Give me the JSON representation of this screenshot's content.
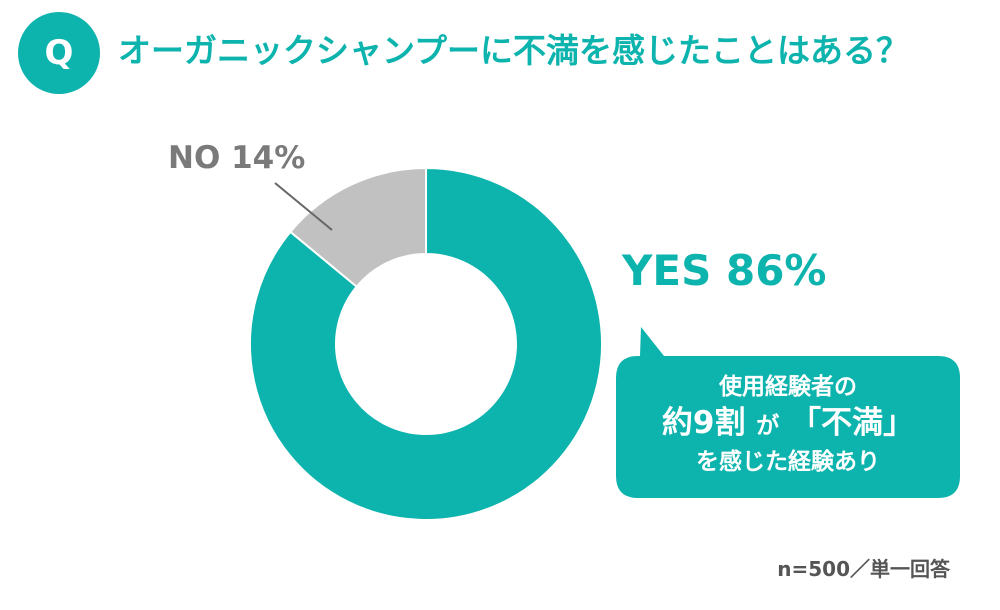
{
  "header": {
    "q_badge": "Q",
    "title": "オーガニックシャンプーに不満を感じたことはある？"
  },
  "colors": {
    "accent": "#0db3ad",
    "no_slice": "#c1c1c1",
    "text_gray": "#7a7a7a"
  },
  "chart_data": {
    "type": "pie",
    "variant": "donut",
    "slices": [
      {
        "label": "YES",
        "value": 86,
        "color": "#0db3ad"
      },
      {
        "label": "NO",
        "value": 14,
        "color": "#c1c1c1"
      }
    ],
    "labels": {
      "no": "NO 14%",
      "yes": "YES 86%"
    }
  },
  "callout": {
    "line1": "使用経験者の",
    "line2_bold": "約9割",
    "line2_small": "が",
    "line2_quote": "「不満」",
    "line3": "を感じた経験あり"
  },
  "note": "n=500／単一回答"
}
